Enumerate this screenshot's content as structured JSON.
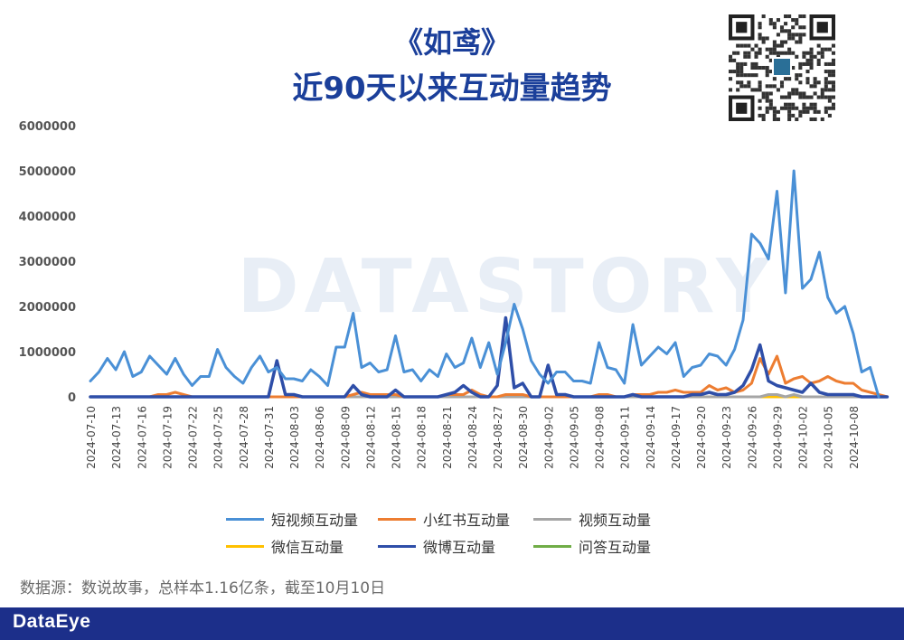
{
  "header": {
    "title": "《如鸢》",
    "subtitle": "近90天以来互动量趋势"
  },
  "source_note": "数据源：数说故事，总样本1.16亿条，截至10月10日",
  "footer": {
    "brand": "DataEye"
  },
  "colors": {
    "title": "#1b3f9a",
    "footer": "#1c2f8a"
  },
  "chart_data": {
    "type": "line",
    "title": "近90天以来互动量趋势",
    "ylim": [
      0,
      6000000
    ],
    "y_ticks": [
      "0",
      "1000000",
      "2000000",
      "3000000",
      "4000000",
      "5000000",
      "6000000"
    ],
    "x_tick_labels": [
      "2024-07-10",
      "2024-07-13",
      "2024-07-16",
      "2024-07-19",
      "2024-07-22",
      "2024-07-25",
      "2024-07-28",
      "2024-07-31",
      "2024-08-03",
      "2024-08-06",
      "2024-08-09",
      "2024-08-12",
      "2024-08-15",
      "2024-08-18",
      "2024-08-21",
      "2024-08-24",
      "2024-08-27",
      "2024-08-30",
      "2024-09-02",
      "2024-09-05",
      "2024-09-08",
      "2024-09-11",
      "2024-09-14",
      "2024-09-17",
      "2024-09-20",
      "2024-09-23",
      "2024-09-26",
      "2024-09-29",
      "2024-10-02",
      "2024-10-05",
      "2024-10-08"
    ],
    "x_start": "2024-07-10",
    "x_end": "2024-10-10",
    "legend_position": "bottom",
    "series": [
      {
        "name": "短视频互动量",
        "color": "#4a90d6",
        "width": 3,
        "values": [
          350000,
          550000,
          850000,
          600000,
          1000000,
          450000,
          550000,
          900000,
          700000,
          500000,
          850000,
          500000,
          250000,
          450000,
          450000,
          1050000,
          650000,
          450000,
          300000,
          650000,
          900000,
          550000,
          650000,
          400000,
          400000,
          350000,
          600000,
          450000,
          250000,
          1100000,
          1100000,
          1850000,
          650000,
          750000,
          550000,
          600000,
          1350000,
          550000,
          600000,
          350000,
          600000,
          450000,
          950000,
          650000,
          750000,
          1300000,
          650000,
          1200000,
          500000,
          1200000,
          2050000,
          1500000,
          800000,
          500000,
          300000,
          550000,
          550000,
          350000,
          350000,
          300000,
          1200000,
          650000,
          600000,
          300000,
          1600000,
          700000,
          900000,
          1100000,
          950000,
          1200000,
          450000,
          650000,
          700000,
          950000,
          900000,
          700000,
          1050000,
          1700000,
          3600000,
          3400000,
          3050000,
          4550000,
          2300000,
          5000000,
          2400000,
          2600000,
          3200000,
          2200000,
          1850000,
          2000000,
          1400000,
          550000,
          650000,
          0
        ]
      },
      {
        "name": "小红书互动量",
        "color": "#ed7d31",
        "width": 3,
        "values": [
          0,
          0,
          0,
          0,
          0,
          0,
          0,
          0,
          50000,
          50000,
          100000,
          50000,
          0,
          0,
          0,
          0,
          0,
          0,
          0,
          0,
          0,
          0,
          0,
          0,
          0,
          0,
          0,
          0,
          0,
          0,
          0,
          50000,
          100000,
          50000,
          50000,
          50000,
          50000,
          0,
          0,
          0,
          0,
          0,
          50000,
          50000,
          50000,
          150000,
          50000,
          0,
          0,
          50000,
          50000,
          50000,
          0,
          0,
          0,
          0,
          0,
          0,
          0,
          0,
          50000,
          50000,
          0,
          0,
          50000,
          50000,
          50000,
          100000,
          100000,
          150000,
          100000,
          100000,
          100000,
          250000,
          150000,
          200000,
          100000,
          150000,
          300000,
          850000,
          500000,
          900000,
          300000,
          400000,
          450000,
          300000,
          350000,
          450000,
          350000,
          300000,
          300000,
          150000,
          100000,
          50000,
          0
        ]
      },
      {
        "name": "视频互动量",
        "color": "#a5a5a5",
        "width": 3,
        "values": [
          0,
          0,
          0,
          0,
          0,
          0,
          0,
          0,
          0,
          0,
          0,
          0,
          0,
          0,
          0,
          0,
          0,
          0,
          0,
          0,
          0,
          0,
          0,
          0,
          0,
          0,
          0,
          0,
          0,
          0,
          0,
          0,
          0,
          0,
          0,
          0,
          0,
          0,
          0,
          0,
          0,
          0,
          0,
          0,
          0,
          0,
          0,
          0,
          0,
          0,
          0,
          0,
          0,
          0,
          0,
          0,
          0,
          0,
          0,
          0,
          0,
          0,
          0,
          0,
          0,
          0,
          0,
          0,
          0,
          0,
          0,
          0,
          0,
          0,
          0,
          0,
          0,
          0,
          0,
          0,
          50000,
          50000,
          0,
          50000,
          0,
          0,
          0,
          0,
          0,
          0,
          0,
          0,
          0,
          0,
          0
        ]
      },
      {
        "name": "微信互动量",
        "color": "#ffc000",
        "width": 3,
        "values": [
          0,
          0,
          0,
          0,
          0,
          0,
          0,
          0,
          0,
          0,
          0,
          0,
          0,
          0,
          0,
          0,
          0,
          0,
          0,
          0,
          0,
          0,
          0,
          0,
          0,
          0,
          0,
          0,
          0,
          0,
          0,
          0,
          0,
          0,
          0,
          0,
          0,
          0,
          0,
          0,
          0,
          0,
          0,
          0,
          0,
          0,
          0,
          0,
          0,
          0,
          0,
          0,
          0,
          0,
          0,
          0,
          0,
          0,
          0,
          0,
          0,
          0,
          0,
          0,
          0,
          0,
          0,
          0,
          0,
          0,
          0,
          0,
          0,
          0,
          0,
          0,
          0,
          0,
          0,
          0,
          0,
          0,
          0,
          0,
          0,
          0,
          0,
          0,
          0,
          0,
          0,
          0,
          0,
          0,
          0
        ]
      },
      {
        "name": "微博互动量",
        "color": "#2e4ea8",
        "width": 3.5,
        "values": [
          0,
          0,
          0,
          0,
          0,
          0,
          0,
          0,
          0,
          0,
          0,
          0,
          0,
          0,
          0,
          0,
          0,
          0,
          0,
          0,
          0,
          0,
          800000,
          50000,
          50000,
          0,
          0,
          0,
          0,
          0,
          0,
          250000,
          50000,
          0,
          0,
          0,
          150000,
          0,
          0,
          0,
          0,
          0,
          50000,
          100000,
          250000,
          100000,
          0,
          0,
          250000,
          1750000,
          200000,
          300000,
          0,
          0,
          700000,
          50000,
          50000,
          0,
          0,
          0,
          0,
          0,
          0,
          0,
          50000,
          0,
          0,
          0,
          0,
          0,
          0,
          50000,
          50000,
          100000,
          50000,
          50000,
          100000,
          250000,
          600000,
          1150000,
          350000,
          250000,
          200000,
          150000,
          100000,
          300000,
          100000,
          50000,
          50000,
          50000,
          50000,
          0,
          0,
          0,
          0
        ]
      },
      {
        "name": "问答互动量",
        "color": "#70ad47",
        "width": 3,
        "values": [
          0,
          0,
          0,
          0,
          0,
          0,
          0,
          0,
          0,
          0,
          0,
          0,
          0,
          0,
          0,
          0,
          0,
          0,
          0,
          0,
          0,
          0,
          0,
          0,
          0,
          0,
          0,
          0,
          0,
          0,
          0,
          0,
          0,
          0,
          0,
          0,
          0,
          0,
          0,
          0,
          0,
          0,
          0,
          0,
          0,
          0,
          0,
          0,
          0,
          0,
          0,
          0,
          0,
          0,
          0,
          0,
          0,
          0,
          0,
          0,
          0,
          0,
          0,
          0,
          0,
          0,
          0,
          0,
          0,
          0,
          0,
          0,
          0,
          0,
          0,
          0,
          0,
          0,
          0,
          0,
          0,
          0,
          0,
          0,
          0,
          0,
          0,
          0,
          0,
          0,
          0,
          0,
          0,
          0,
          0
        ]
      }
    ]
  }
}
